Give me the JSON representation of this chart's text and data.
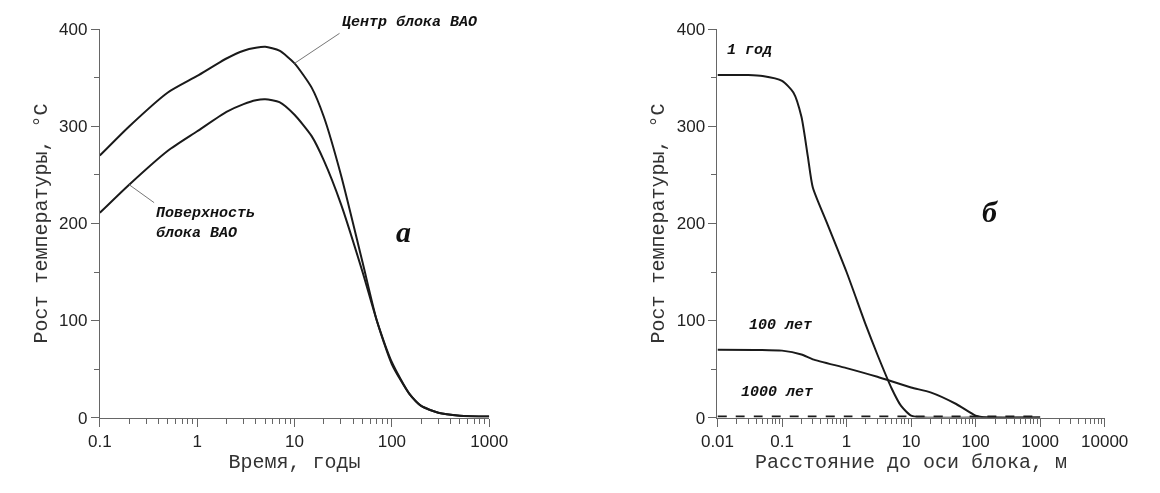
{
  "chart_data": [
    {
      "type": "line",
      "xlabel": "Время, годы",
      "ylabel": "Рост температуры, °C",
      "log": "x",
      "xlim": [
        0.1,
        1000
      ],
      "xticks": [
        0.1,
        1,
        10,
        100,
        1000
      ],
      "ylim": [
        0,
        400
      ],
      "yticks": [
        0,
        100,
        200,
        300,
        400
      ],
      "legend": false,
      "marker": "none",
      "annotations": [
        "а"
      ],
      "x": [
        0.1,
        0.2,
        0.5,
        1,
        2,
        3,
        4,
        5,
        7,
        10,
        15,
        20,
        30,
        50,
        70,
        100,
        150,
        200,
        300,
        500,
        1000
      ],
      "series": [
        {
          "name": "Центр блока ВАО",
          "color": "#1a1a1a",
          "line_style": "solid",
          "values": [
            270,
            300,
            335,
            352,
            370,
            378,
            381,
            382,
            378,
            365,
            340,
            310,
            250,
            160,
            100,
            55,
            25,
            12,
            5,
            2,
            1
          ]
        },
        {
          "name": "Поверхность\nблока ВАО",
          "color": "#1a1a1a",
          "line_style": "solid",
          "values": [
            211,
            240,
            275,
            295,
            315,
            323,
            327,
            328,
            325,
            312,
            290,
            265,
            220,
            150,
            100,
            57,
            25,
            12,
            5,
            2,
            1
          ]
        }
      ]
    },
    {
      "type": "line",
      "xlabel": "Расстояние до оси блока, м",
      "ylabel": "Рост температуры, °C",
      "log": "x",
      "xlim": [
        0.01,
        10000
      ],
      "xticks": [
        0.01,
        0.1,
        1,
        10,
        100,
        1000,
        10000
      ],
      "ylim": [
        0,
        400
      ],
      "yticks": [
        0,
        100,
        200,
        300,
        400
      ],
      "legend": false,
      "marker": "none",
      "annotations": [
        "б"
      ],
      "series": [
        {
          "name": "1 год",
          "color": "#1a1a1a",
          "line_style": "solid",
          "x": [
            0.01,
            0.03,
            0.05,
            0.1,
            0.15,
            0.2,
            0.25,
            0.3,
            0.5,
            1,
            2,
            3,
            5,
            7,
            10,
            15,
            100,
            1000
          ],
          "values": [
            353,
            353,
            352,
            347,
            335,
            310,
            270,
            237,
            200,
            150,
            95,
            65,
            30,
            12,
            2,
            0,
            0,
            0
          ]
        },
        {
          "name": "100 лет",
          "color": "#1a1a1a",
          "line_style": "solid",
          "x": [
            0.01,
            0.1,
            0.2,
            0.3,
            1,
            3,
            10,
            20,
            50,
            100,
            150,
            1000
          ],
          "values": [
            70,
            69,
            65,
            60,
            51,
            42,
            31,
            26,
            14,
            2,
            0,
            0
          ]
        },
        {
          "name": "1000 лет",
          "color": "#1a1a1a",
          "line_style": "dashed",
          "x": [
            0.01,
            1,
            100,
            1000
          ],
          "values": [
            1,
            1,
            1,
            1
          ]
        }
      ]
    }
  ]
}
